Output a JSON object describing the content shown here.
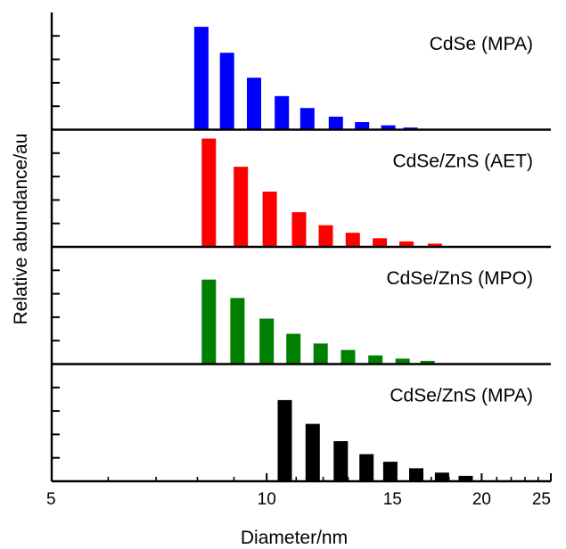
{
  "chart_data": {
    "type": "bar",
    "xlabel": "Diameter/nm",
    "ylabel": "Relative abundance/au",
    "x_scale": "log",
    "xlim": [
      5,
      25
    ],
    "x_ticks": [
      5,
      10,
      15,
      20,
      25
    ],
    "x_tick_labels": [
      "5",
      "10",
      "15",
      "20",
      "25"
    ],
    "panels": [
      {
        "label": "CdSe (MPA)",
        "color": "#0000ff",
        "x": [
          8.1,
          8.8,
          9.6,
          10.5,
          11.4,
          12.5,
          13.6,
          14.8,
          15.9
        ],
        "values": [
          95,
          71,
          48,
          31,
          20,
          12,
          7,
          4,
          2
        ],
        "ylim": [
          0,
          100
        ]
      },
      {
        "label": "CdSe/ZnS (AET)",
        "color": "#ff0000",
        "x": [
          8.3,
          9.2,
          10.1,
          11.1,
          12.1,
          13.2,
          14.4,
          15.7,
          17.2
        ],
        "values": [
          100,
          74,
          51,
          32,
          20,
          13,
          8,
          5,
          3
        ],
        "ylim": [
          0,
          100
        ]
      },
      {
        "label": "CdSe/ZnS (MPO)",
        "color": "#008000",
        "x": [
          8.3,
          9.1,
          10.0,
          10.9,
          11.9,
          13.0,
          14.2,
          15.5,
          16.8
        ],
        "values": [
          78,
          61,
          42,
          28,
          19,
          13,
          8,
          5,
          3
        ],
        "ylim": [
          0,
          100
        ]
      },
      {
        "label": "CdSe/ZnS (MPA)",
        "color": "#000000",
        "x": [
          10.6,
          11.6,
          12.7,
          13.8,
          14.9,
          16.2,
          17.6,
          19.0
        ],
        "values": [
          75,
          53,
          37,
          25,
          18,
          12,
          8,
          5
        ],
        "ylim": [
          0,
          100
        ]
      }
    ]
  }
}
